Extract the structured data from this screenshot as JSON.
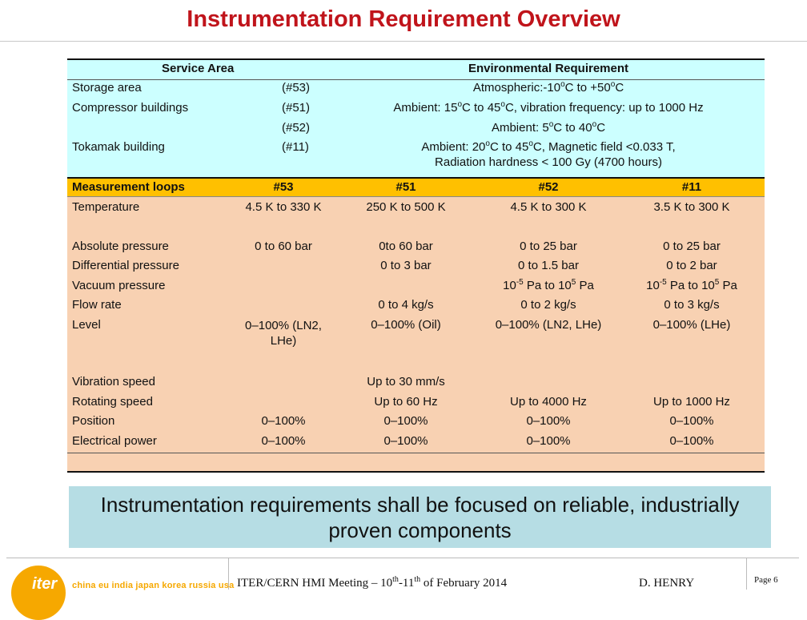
{
  "title": "Instrumentation Requirement Overview",
  "env": {
    "header_service": "Service Area",
    "header_env": "Environmental Requirement",
    "rows": [
      {
        "area": "Storage area",
        "code": "(#53)",
        "req": "Atmospheric:-10oC to +50oC"
      },
      {
        "area": "Compressor buildings",
        "code": "(#51)",
        "req": "Ambient: 15oC to 45oC, vibration frequency: up to 1000 Hz"
      },
      {
        "area": "",
        "code": "(#52)",
        "req": "Ambient: 5oC to 40oC"
      },
      {
        "area": "Tokamak building",
        "code": "(#11)",
        "req_line1": "Ambient: 20oC to 45oC, Magnetic field <0.033 T,",
        "req_line2": "Radiation hardness < 100 Gy (4700 hours)"
      }
    ]
  },
  "meas": {
    "header_label": "Measurement loops",
    "columns": [
      "#53",
      "#51",
      "#52",
      "#11"
    ],
    "rows": [
      {
        "label": "Temperature",
        "values": [
          "4.5 K to 330 K",
          "250 K to 500 K",
          "4.5 K to 300 K",
          "3.5 K to 300 K"
        ]
      },
      {
        "label": "Absolute pressure",
        "values": [
          "0 to 60 bar",
          "0to 60 bar",
          "0 to 25 bar",
          "0 to 25 bar"
        ]
      },
      {
        "label": "Differential pressure",
        "values": [
          "",
          "0 to 3 bar",
          "0 to 1.5 bar",
          "0 to 2 bar"
        ]
      },
      {
        "label": "Vacuum pressure",
        "values": [
          "",
          "",
          "10-5 Pa to 105 Pa",
          "10-5 Pa to 105 Pa"
        ]
      },
      {
        "label": "Flow rate",
        "values": [
          "",
          "0 to 4 kg/s",
          "0 to 2 kg/s",
          "0 to 3 kg/s"
        ]
      },
      {
        "label": "Level",
        "values": [
          "0–100% (LN2, LHe)",
          "0–100% (Oil)",
          "0–100% (LN2, LHe)",
          "0–100% (LHe)"
        ]
      },
      {
        "label": "Vibration speed",
        "values": [
          "",
          "Up to 30 mm/s",
          "",
          ""
        ]
      },
      {
        "label": "Rotating speed",
        "values": [
          "",
          "Up to 60 Hz",
          "Up to 4000 Hz",
          "Up to 1000 Hz"
        ]
      },
      {
        "label": "Position",
        "values": [
          "0–100%",
          "0–100%",
          "0–100%",
          "0–100%"
        ]
      },
      {
        "label": "Electrical power",
        "values": [
          "0–100%",
          "0–100%",
          "0–100%",
          "0–100%"
        ]
      }
    ]
  },
  "banner": "Instrumentation requirements shall be focused on reliable, industrially proven components",
  "footer": {
    "logo_word": "iter",
    "logo_tagline": "china eu india japan korea russia usa",
    "meeting": "ITER/CERN HMI Meeting – 10th-11th of February 2014",
    "author": "D.  HENRY",
    "page": "Page 6"
  },
  "colors": {
    "title": "#c0141b",
    "env_bg": "#ccffff",
    "meas_bg": "#f8d1b2",
    "meas_header": "#ffc000",
    "banner": "#b6dde4",
    "logo": "#f6a800"
  }
}
